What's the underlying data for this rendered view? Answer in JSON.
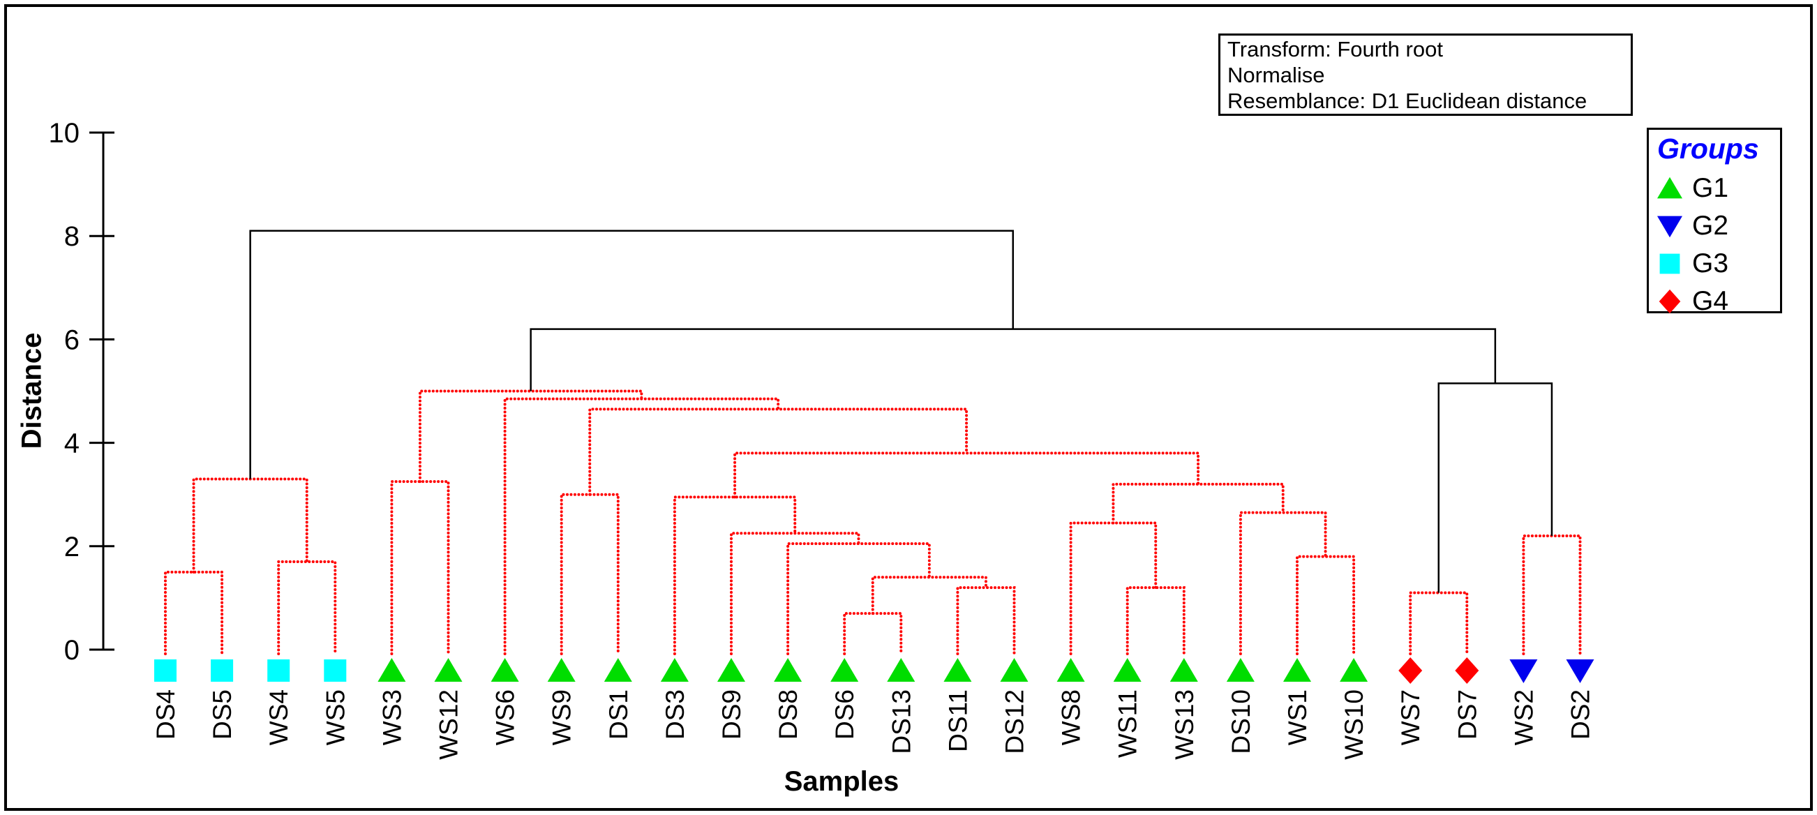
{
  "chart_data": {
    "type": "dendrogram",
    "info_box": {
      "line1": "Transform: Fourth root",
      "line2": "Normalise",
      "line3": "Resemblance: D1 Euclidean distance"
    },
    "xlabel": "Samples",
    "ylabel": "Distance",
    "y_ticks": [
      0,
      2,
      4,
      6,
      8,
      10
    ],
    "ylim": [
      0,
      10
    ],
    "grid": false,
    "legend": {
      "title": "Groups",
      "title_color": "#0000ff",
      "position": "top-right",
      "items": [
        {
          "label": "G1",
          "marker": "triangle-up",
          "color": "#00dd00"
        },
        {
          "label": "G2",
          "marker": "triangle-down",
          "color": "#0000ee"
        },
        {
          "label": "G3",
          "marker": "square",
          "color": "#00ffff"
        },
        {
          "label": "G4",
          "marker": "diamond",
          "color": "#ff0000"
        }
      ]
    },
    "line_colors": {
      "cluster_links": "#ff0000",
      "top_links": "#000000"
    },
    "leaves": [
      {
        "label": "DS4",
        "group": "G3"
      },
      {
        "label": "DS5",
        "group": "G3"
      },
      {
        "label": "WS4",
        "group": "G3"
      },
      {
        "label": "WS5",
        "group": "G3"
      },
      {
        "label": "WS3",
        "group": "G1"
      },
      {
        "label": "WS12",
        "group": "G1"
      },
      {
        "label": "WS6",
        "group": "G1"
      },
      {
        "label": "WS9",
        "group": "G1"
      },
      {
        "label": "DS1",
        "group": "G1"
      },
      {
        "label": "DS3",
        "group": "G1"
      },
      {
        "label": "DS9",
        "group": "G1"
      },
      {
        "label": "DS8",
        "group": "G1"
      },
      {
        "label": "DS6",
        "group": "G1"
      },
      {
        "label": "DS13",
        "group": "G1"
      },
      {
        "label": "DS11",
        "group": "G1"
      },
      {
        "label": "DS12",
        "group": "G1"
      },
      {
        "label": "WS8",
        "group": "G1"
      },
      {
        "label": "WS11",
        "group": "G1"
      },
      {
        "label": "WS13",
        "group": "G1"
      },
      {
        "label": "DS10",
        "group": "G1"
      },
      {
        "label": "WS1",
        "group": "G1"
      },
      {
        "label": "WS10",
        "group": "G1"
      },
      {
        "label": "WS7",
        "group": "G4"
      },
      {
        "label": "DS7",
        "group": "G4"
      },
      {
        "label": "WS2",
        "group": "G2"
      },
      {
        "label": "DS2",
        "group": "G2"
      }
    ],
    "merges": [
      {
        "id": "n1",
        "a": "DS4",
        "b": "DS5",
        "height": 1.5,
        "color": "red"
      },
      {
        "id": "n2",
        "a": "WS4",
        "b": "WS5",
        "height": 1.7,
        "color": "red"
      },
      {
        "id": "n3",
        "a": "n1",
        "b": "n2",
        "height": 3.3,
        "color": "red"
      },
      {
        "id": "n4",
        "a": "WS3",
        "b": "WS12",
        "height": 3.25,
        "color": "red"
      },
      {
        "id": "n5",
        "a": "WS9",
        "b": "DS1",
        "height": 3.0,
        "color": "red"
      },
      {
        "id": "n6",
        "a": "DS6",
        "b": "DS13",
        "height": 0.7,
        "color": "red"
      },
      {
        "id": "n7",
        "a": "DS11",
        "b": "DS12",
        "height": 1.2,
        "color": "red"
      },
      {
        "id": "n8",
        "a": "n6",
        "b": "n7",
        "height": 1.4,
        "color": "red"
      },
      {
        "id": "n9",
        "a": "DS8",
        "b": "n8",
        "height": 2.05,
        "color": "red"
      },
      {
        "id": "n10",
        "a": "DS9",
        "b": "n9",
        "height": 2.25,
        "color": "red"
      },
      {
        "id": "n11",
        "a": "DS3",
        "b": "n10",
        "height": 2.95,
        "color": "red"
      },
      {
        "id": "n12",
        "a": "WS11",
        "b": "WS13",
        "height": 1.2,
        "color": "red"
      },
      {
        "id": "n13",
        "a": "WS8",
        "b": "n12",
        "height": 2.45,
        "color": "red"
      },
      {
        "id": "n14",
        "a": "WS1",
        "b": "WS10",
        "height": 1.8,
        "color": "red"
      },
      {
        "id": "n15",
        "a": "DS10",
        "b": "n14",
        "height": 2.65,
        "color": "red"
      },
      {
        "id": "n16",
        "a": "n13",
        "b": "n15",
        "height": 3.2,
        "color": "red"
      },
      {
        "id": "n17",
        "a": "n11",
        "b": "n16",
        "height": 3.8,
        "color": "red"
      },
      {
        "id": "n18",
        "a": "n5",
        "b": "n17",
        "height": 4.65,
        "color": "red"
      },
      {
        "id": "n19",
        "a": "WS6",
        "b": "n18",
        "height": 4.85,
        "color": "red"
      },
      {
        "id": "n20",
        "a": "n4",
        "b": "n19",
        "height": 5.0,
        "color": "red"
      },
      {
        "id": "n21",
        "a": "WS7",
        "b": "DS7",
        "height": 1.1,
        "color": "red"
      },
      {
        "id": "n22",
        "a": "WS2",
        "b": "DS2",
        "height": 2.2,
        "color": "red"
      },
      {
        "id": "n23",
        "a": "n21",
        "b": "n22",
        "height": 5.15,
        "color": "black"
      },
      {
        "id": "n24",
        "a": "n20",
        "b": "n23",
        "height": 6.2,
        "color": "black"
      },
      {
        "id": "root",
        "a": "n3",
        "b": "n24",
        "height": 8.1,
        "color": "black"
      }
    ]
  }
}
